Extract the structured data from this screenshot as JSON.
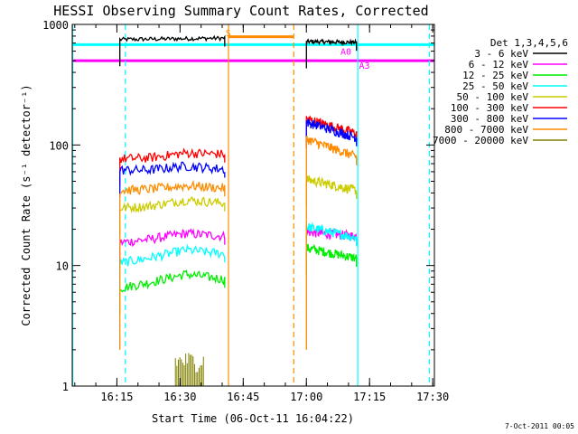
{
  "chart_data": {
    "type": "line",
    "title": "HESSI Observing Summary Count Rates, Corrected",
    "xlabel": "Start Time (06-Oct-11 16:04:22)",
    "ylabel": "Corrected Count Rate (s⁻¹ detector⁻¹)",
    "x_unit": "minutes after 16:04:22",
    "xlim": [
      0,
      86
    ],
    "yscale": "log",
    "ylim": [
      1,
      1000
    ],
    "x_ticks": [
      {
        "label": "16:15",
        "value": 10.6
      },
      {
        "label": "16:30",
        "value": 25.6
      },
      {
        "label": "16:45",
        "value": 40.6
      },
      {
        "label": "17:00",
        "value": 55.6
      },
      {
        "label": "17:15",
        "value": 70.6
      },
      {
        "label": "17:30",
        "value": 85.6
      }
    ],
    "y_ticks": [
      {
        "label": "1",
        "value": 1
      },
      {
        "label": "10",
        "value": 10
      },
      {
        "label": "100",
        "value": 100
      },
      {
        "label": "1000",
        "value": 1000
      }
    ],
    "grid": false,
    "legend_title": "Det 1,3,4,5,6",
    "legend_position": "right",
    "series": [
      {
        "name": "3 - 6 keV",
        "color": "#000000",
        "segments": [
          [
            [
              11.3,
              750
            ],
            [
              36.2,
              770
            ]
          ],
          [
            [
              55.6,
              720
            ],
            [
              67.5,
              710
            ]
          ]
        ]
      },
      {
        "name": "6 - 12 keV",
        "color": "#ff00ff",
        "segments": [
          [
            [
              11.3,
              15.5
            ],
            [
              18,
              16.5
            ],
            [
              27,
              18.5
            ],
            [
              36.2,
              17.5
            ]
          ],
          [
            [
              55.6,
              19
            ],
            [
              67.5,
              17.5
            ]
          ]
        ]
      },
      {
        "name": "12 - 25 keV",
        "color": "#00ee00",
        "segments": [
          [
            [
              11.3,
              6.5
            ],
            [
              18,
              7.2
            ],
            [
              27,
              8.5
            ],
            [
              36.2,
              7.7
            ]
          ],
          [
            [
              55.6,
              14
            ],
            [
              67.5,
              11.5
            ]
          ]
        ]
      },
      {
        "name": "25 - 50 keV",
        "color": "#00ffff",
        "segments": [
          [
            [
              11.3,
              10.5
            ],
            [
              18,
              11.5
            ],
            [
              27,
              13.5
            ],
            [
              36.2,
              12.5
            ]
          ],
          [
            [
              55.6,
              21
            ],
            [
              67.5,
              17
            ]
          ]
        ]
      },
      {
        "name": "50 - 100 keV",
        "color": "#cccc00",
        "segments": [
          [
            [
              11.3,
              30
            ],
            [
              18,
              31
            ],
            [
              27,
              35
            ],
            [
              36.2,
              33
            ]
          ],
          [
            [
              55.6,
              52
            ],
            [
              67.5,
              42
            ]
          ]
        ]
      },
      {
        "name": "100 - 300 keV",
        "color": "#ff0000",
        "segments": [
          [
            [
              11.3,
              77
            ],
            [
              18,
              78
            ],
            [
              27,
              86
            ],
            [
              36.2,
              84
            ]
          ],
          [
            [
              55.6,
              165
            ],
            [
              67.5,
              125
            ]
          ]
        ]
      },
      {
        "name": "300 - 800 keV",
        "color": "#0000ff",
        "segments": [
          [
            [
              11.3,
              62
            ],
            [
              18,
              62
            ],
            [
              27,
              67
            ],
            [
              36.2,
              63
            ]
          ],
          [
            [
              55.6,
              155
            ],
            [
              67.5,
              115
            ]
          ]
        ]
      },
      {
        "name": "800 - 7000 keV",
        "color": "#ff8c00",
        "segments": [
          [
            [
              11.3,
              42
            ],
            [
              18,
              43
            ],
            [
              27,
              46
            ],
            [
              36.2,
              44
            ]
          ],
          [
            [
              55.6,
              112
            ],
            [
              67.5,
              80
            ]
          ]
        ]
      },
      {
        "name": "7000 - 20000 keV",
        "color": "#808000",
        "segments": [
          [
            [
              24.5,
              1.6
            ],
            [
              31.5,
              1.6
            ]
          ]
        ]
      }
    ],
    "vertical_markers": [
      {
        "x": 0.1,
        "color": "#00ffff",
        "style": "solid"
      },
      {
        "x": 12.6,
        "color": "#00ffff",
        "style": "dashed"
      },
      {
        "x": 37.1,
        "color": "#ff8c00",
        "style": "solid"
      },
      {
        "x": 52.6,
        "color": "#ff8c00",
        "style": "dashed"
      },
      {
        "x": 67.8,
        "color": "#00ffff",
        "style": "solid"
      },
      {
        "x": 84.8,
        "color": "#00ffff",
        "style": "dashed"
      }
    ],
    "horizontal_bands": [
      {
        "x": [
          0,
          86
        ],
        "y": 680,
        "color": "#00ffff"
      },
      {
        "x": [
          0,
          86
        ],
        "y": 500,
        "color": "#ff00ff"
      },
      {
        "x": [
          37.1,
          52.6
        ],
        "y": 790,
        "color": "#ff8c00"
      }
    ],
    "annotations": [
      {
        "text": "S",
        "x": 36.4,
        "y": 800,
        "color": "#ff8c00"
      },
      {
        "text": "A0",
        "x": 63.7,
        "y": 560,
        "color": "#ff00ff"
      },
      {
        "text": "A3",
        "x": 68.1,
        "y": 430,
        "color": "#ff00ff"
      }
    ],
    "footer_date": "7-Oct-2011 00:05"
  }
}
